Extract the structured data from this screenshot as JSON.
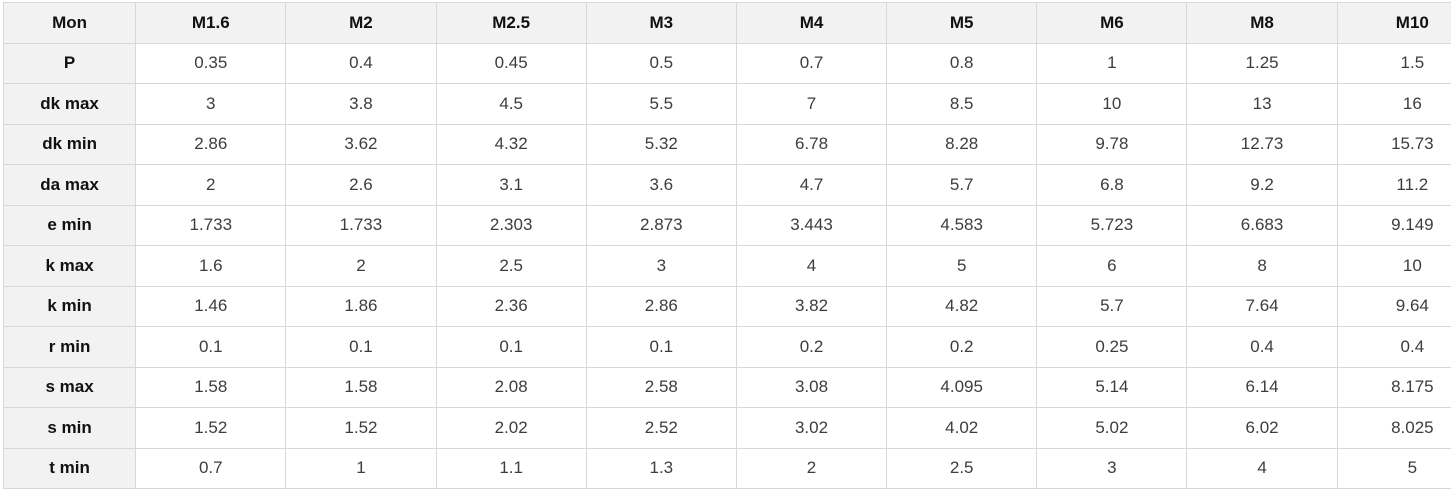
{
  "table": {
    "corner_label": "Mon",
    "columns": [
      "M1.6",
      "M2",
      "M2.5",
      "M3",
      "M4",
      "M5",
      "M6",
      "M8",
      "M10"
    ],
    "rows": [
      {
        "label": "P",
        "values": [
          "0.35",
          "0.4",
          "0.45",
          "0.5",
          "0.7",
          "0.8",
          "1",
          "1.25",
          "1.5"
        ]
      },
      {
        "label": "dk max",
        "values": [
          "3",
          "3.8",
          "4.5",
          "5.5",
          "7",
          "8.5",
          "10",
          "13",
          "16"
        ]
      },
      {
        "label": "dk min",
        "values": [
          "2.86",
          "3.62",
          "4.32",
          "5.32",
          "6.78",
          "8.28",
          "9.78",
          "12.73",
          "15.73"
        ]
      },
      {
        "label": "da max",
        "values": [
          "2",
          "2.6",
          "3.1",
          "3.6",
          "4.7",
          "5.7",
          "6.8",
          "9.2",
          "11.2"
        ]
      },
      {
        "label": "e min",
        "values": [
          "1.733",
          "1.733",
          "2.303",
          "2.873",
          "3.443",
          "4.583",
          "5.723",
          "6.683",
          "9.149"
        ]
      },
      {
        "label": "k max",
        "values": [
          "1.6",
          "2",
          "2.5",
          "3",
          "4",
          "5",
          "6",
          "8",
          "10"
        ]
      },
      {
        "label": "k min",
        "values": [
          "1.46",
          "1.86",
          "2.36",
          "2.86",
          "3.82",
          "4.82",
          "5.7",
          "7.64",
          "9.64"
        ]
      },
      {
        "label": "r min",
        "values": [
          "0.1",
          "0.1",
          "0.1",
          "0.1",
          "0.2",
          "0.2",
          "0.25",
          "0.4",
          "0.4"
        ]
      },
      {
        "label": "s max",
        "values": [
          "1.58",
          "1.58",
          "2.08",
          "2.58",
          "3.08",
          "4.095",
          "5.14",
          "6.14",
          "8.175"
        ]
      },
      {
        "label": "s min",
        "values": [
          "1.52",
          "1.52",
          "2.02",
          "2.52",
          "3.02",
          "4.02",
          "5.02",
          "6.02",
          "8.025"
        ]
      },
      {
        "label": "t min",
        "values": [
          "0.7",
          "1",
          "1.1",
          "1.3",
          "2",
          "2.5",
          "3",
          "4",
          "5"
        ]
      }
    ]
  },
  "colors": {
    "header_bg": "#f2f2f2",
    "border": "#d8d8d8",
    "header_text": "#111111",
    "cell_text": "#3d3d3d",
    "cell_bg": "#ffffff"
  }
}
